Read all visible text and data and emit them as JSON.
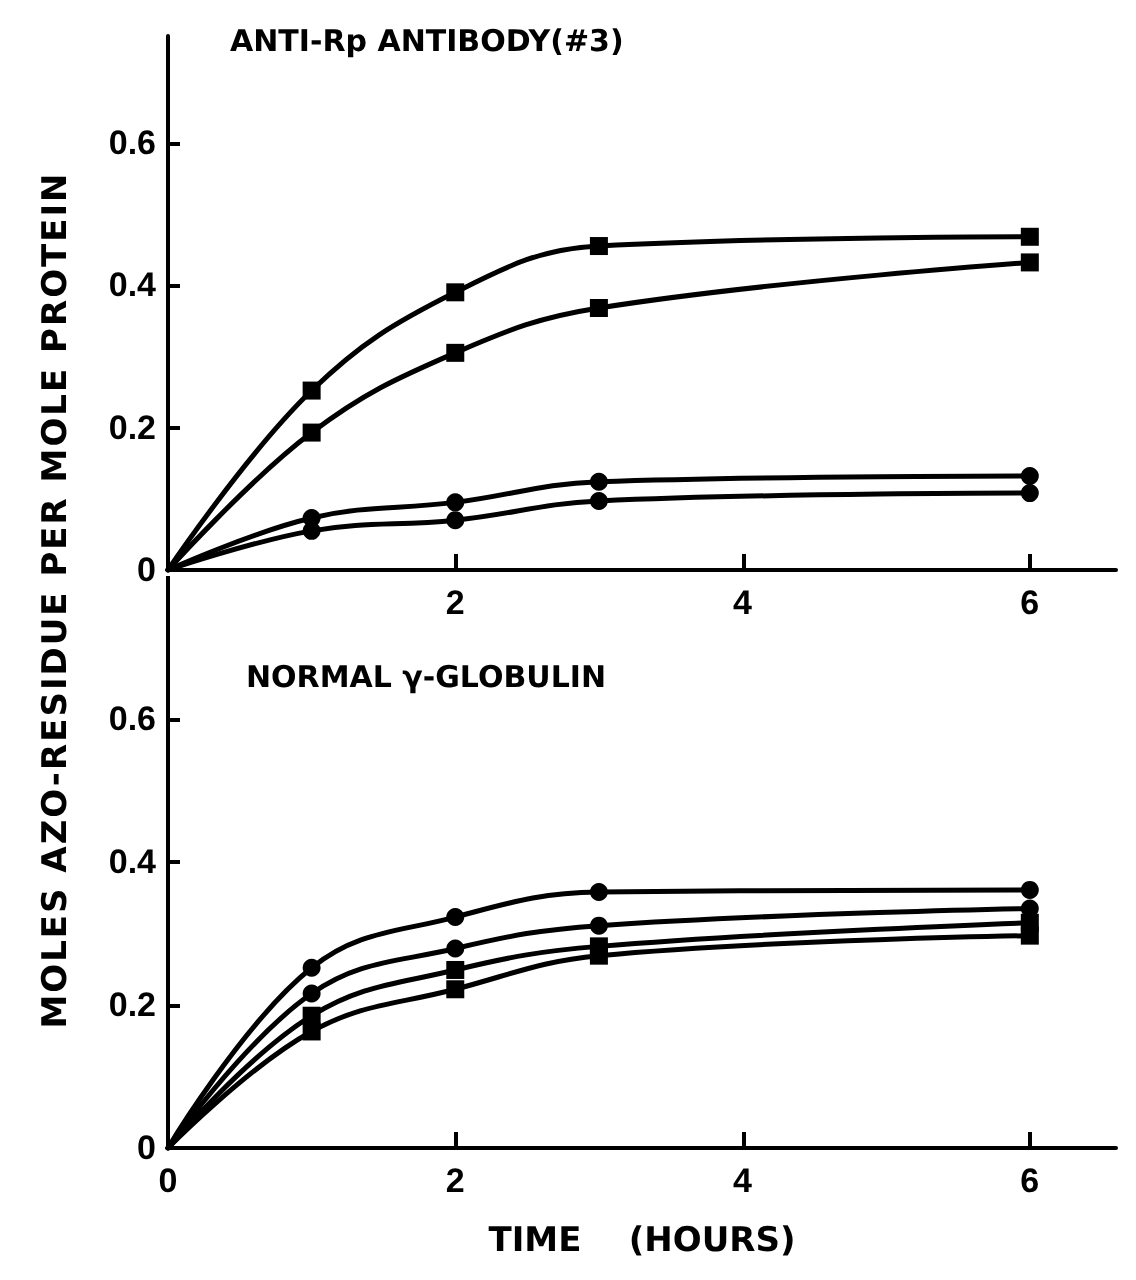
{
  "chart_data": [
    {
      "type": "line",
      "title": "ANTI-Rp ANTIBODY(#3)",
      "ylabel": "MOLES AZO-RESIDUE PER MOLE PROTEIN",
      "x": [
        0,
        1,
        2,
        3,
        6
      ],
      "xlim": [
        0,
        6.6
      ],
      "xticks": [
        2,
        4,
        6
      ],
      "ylim": [
        0,
        0.75
      ],
      "yticks": [
        0,
        0.2,
        0.4,
        0.6
      ],
      "grid": false,
      "line_style": "solid",
      "series": [
        {
          "color": "#000000",
          "marker": "square",
          "values": [
            0,
            0.252,
            0.39,
            0.455,
            0.468
          ]
        },
        {
          "color": "#000000",
          "marker": "square",
          "values": [
            0,
            0.193,
            0.305,
            0.368,
            0.432
          ]
        },
        {
          "color": "#000000",
          "marker": "circle",
          "values": [
            0,
            0.073,
            0.095,
            0.124,
            0.132
          ]
        },
        {
          "color": "#000000",
          "marker": "circle",
          "values": [
            0,
            0.055,
            0.07,
            0.097,
            0.108
          ]
        }
      ]
    },
    {
      "type": "line",
      "title": "NORMAL γ-GLOBULIN",
      "xlabel": "TIME    (HOURS)",
      "x": [
        0,
        1,
        2,
        3,
        6
      ],
      "xlim": [
        0,
        6.6
      ],
      "xticks": [
        0,
        2,
        4,
        6
      ],
      "ylim": [
        0,
        0.8
      ],
      "yticks": [
        0,
        0.2,
        0.4,
        0.6
      ],
      "grid": false,
      "line_style": "solid",
      "series": [
        {
          "color": "#000000",
          "marker": "circle",
          "values": [
            0,
            0.252,
            0.323,
            0.358,
            0.361
          ]
        },
        {
          "color": "#000000",
          "marker": "circle",
          "values": [
            0,
            0.216,
            0.279,
            0.311,
            0.335
          ]
        },
        {
          "color": "#000000",
          "marker": "square",
          "values": [
            0,
            0.185,
            0.249,
            0.282,
            0.315
          ]
        },
        {
          "color": "#000000",
          "marker": "square",
          "values": [
            0,
            0.163,
            0.222,
            0.269,
            0.297
          ]
        }
      ]
    }
  ]
}
